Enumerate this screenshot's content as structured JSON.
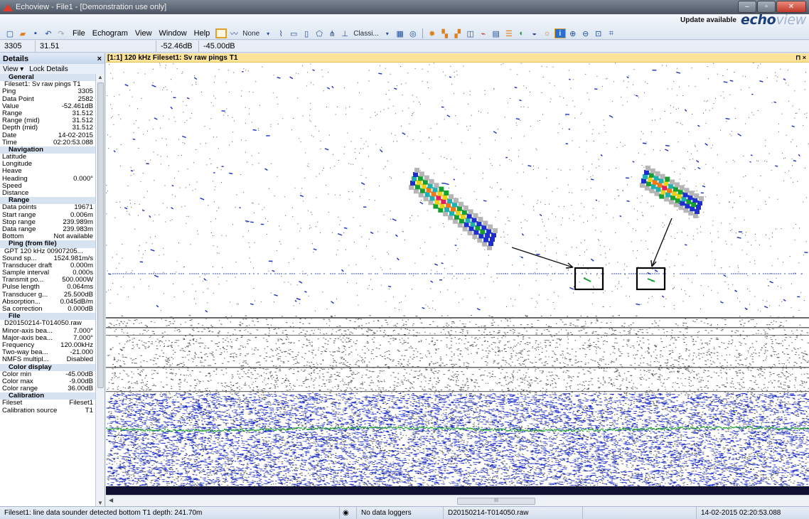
{
  "window": {
    "title": "Echoview - File1 - [Demonstration use only]",
    "controls": [
      "–",
      "▫",
      "✕"
    ]
  },
  "toolbar": {
    "update_label": "Update available",
    "brand_main": "echo",
    "brand_light": "view",
    "menu": [
      "File",
      "Echogram",
      "View",
      "Window",
      "Help"
    ],
    "line_style": "None",
    "classification": "Classi..."
  },
  "valuebar": {
    "ping": "3305",
    "range": "31.51",
    "value": "-52.46dB",
    "threshold": "-45.00dB"
  },
  "details": {
    "title": "Details",
    "close": "×",
    "view_menu": "View ▾",
    "lock_details": "Lock Details",
    "rows": [
      {
        "type": "section",
        "label": "General"
      },
      {
        "type": "full",
        "label": "Fileset1: Sv raw pings T1"
      },
      {
        "label": "Ping",
        "value": "3305"
      },
      {
        "label": "Data Point",
        "value": "2582"
      },
      {
        "label": "Value",
        "value": "-52.461dB"
      },
      {
        "label": "Range",
        "value": "31.512"
      },
      {
        "label": "Range (mid)",
        "value": "31.512"
      },
      {
        "label": "Depth (mid)",
        "value": "31.512"
      },
      {
        "label": "Date",
        "value": "14-02-2015"
      },
      {
        "label": "Time",
        "value": "02:20:53.088"
      },
      {
        "type": "section",
        "label": "Navigation"
      },
      {
        "label": "Latitude",
        "value": ""
      },
      {
        "label": "Longitude",
        "value": ""
      },
      {
        "label": "Heave",
        "value": ""
      },
      {
        "label": "Heading",
        "value": "0.000°"
      },
      {
        "label": "Speed",
        "value": ""
      },
      {
        "label": "Distance",
        "value": ""
      },
      {
        "type": "section",
        "label": "Range"
      },
      {
        "label": "Data points",
        "value": "19671"
      },
      {
        "label": "Start range",
        "value": "0.006m"
      },
      {
        "label": "Stop range",
        "value": "239.989m"
      },
      {
        "label": "Data range",
        "value": "239.983m"
      },
      {
        "label": "Bottom",
        "value": "Not available"
      },
      {
        "type": "section",
        "label": "Ping (from file)"
      },
      {
        "type": "full",
        "label": "GPT 120 kHz 00907205..."
      },
      {
        "label": "Sound sp...",
        "value": "1524.981m/s"
      },
      {
        "label": "Transducer draft",
        "value": "0.000m"
      },
      {
        "label": "Sample interval",
        "value": "0.000s"
      },
      {
        "label": "Transmit po...",
        "value": "500.000W"
      },
      {
        "label": "Pulse length",
        "value": "0.064ms"
      },
      {
        "label": "Transducer g...",
        "value": "25.500dB"
      },
      {
        "label": "Absorption...",
        "value": "0.045dB/m"
      },
      {
        "label": "Sa correction",
        "value": "0.000dB"
      },
      {
        "type": "section",
        "label": "File"
      },
      {
        "type": "full",
        "label": "D20150214-T014050.raw"
      },
      {
        "label": "Minor-axis bea...",
        "value": "7.000°"
      },
      {
        "label": "Major-axis bea...",
        "value": "7.000°"
      },
      {
        "label": "Frequency",
        "value": "120.00kHz"
      },
      {
        "label": "Two-way bea...",
        "value": "-21.000"
      },
      {
        "label": "NMFS multipl...",
        "value": "Disabled"
      },
      {
        "type": "section",
        "label": "Color display"
      },
      {
        "label": "Color min",
        "value": "-45.00dB"
      },
      {
        "label": "Color max",
        "value": "-9.00dB"
      },
      {
        "label": "Color range",
        "value": "36.00dB"
      },
      {
        "type": "section",
        "label": "Calibration"
      },
      {
        "label": "Fileset",
        "value": "Fileset1"
      },
      {
        "label": "Calibration source",
        "value": "T1"
      }
    ]
  },
  "echogram": {
    "header": "[1:1] 120 kHz Fileset1: Sv raw pings T1",
    "pin": "⊓ ×"
  },
  "hscroll": {
    "grip": "III"
  },
  "status": {
    "message": "Fileset1: line data sounder detected bottom T1 depth: 241.70m",
    "loggers": "No data loggers",
    "file": "D20150214-T014050.raw",
    "datetime": "14-02-2015 02:20:53.088"
  }
}
